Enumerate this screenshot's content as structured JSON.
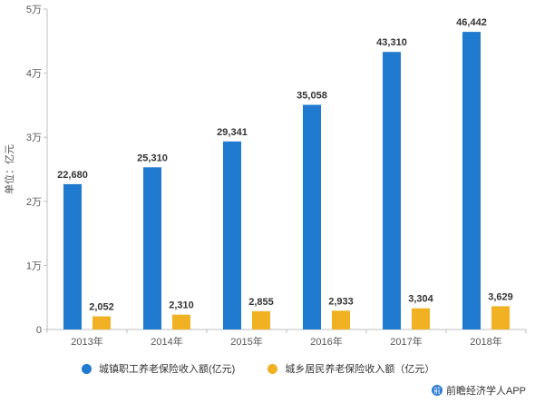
{
  "chart_data": {
    "type": "bar",
    "categories": [
      "2013年",
      "2014年",
      "2015年",
      "2016年",
      "2017年",
      "2018年"
    ],
    "series": [
      {
        "name": "城镇职工养老保险收入额(亿元)",
        "color": "#1f7ad0",
        "values": [
          22680,
          25310,
          29341,
          35058,
          43310,
          46442
        ],
        "labels": [
          "22,680",
          "25,310",
          "29,341",
          "35,058",
          "43,310",
          "46,442"
        ]
      },
      {
        "name": "城乡居民养老保险收入额（亿元）",
        "color": "#f0b122",
        "values": [
          2052,
          2310,
          2855,
          2933,
          3304,
          3629
        ],
        "labels": [
          "2,052",
          "2,310",
          "2,855",
          "2,933",
          "3,304",
          "3,629"
        ]
      }
    ],
    "ylabel": "单位：亿元",
    "ylim": [
      0,
      50000
    ],
    "yticks": [
      0,
      10000,
      20000,
      30000,
      40000,
      50000
    ],
    "yticklabels": [
      "0",
      "1万",
      "2万",
      "3万",
      "4万",
      "5万"
    ],
    "grid": false,
    "legend": "bottom"
  },
  "source": "前瞻经济学人APP"
}
